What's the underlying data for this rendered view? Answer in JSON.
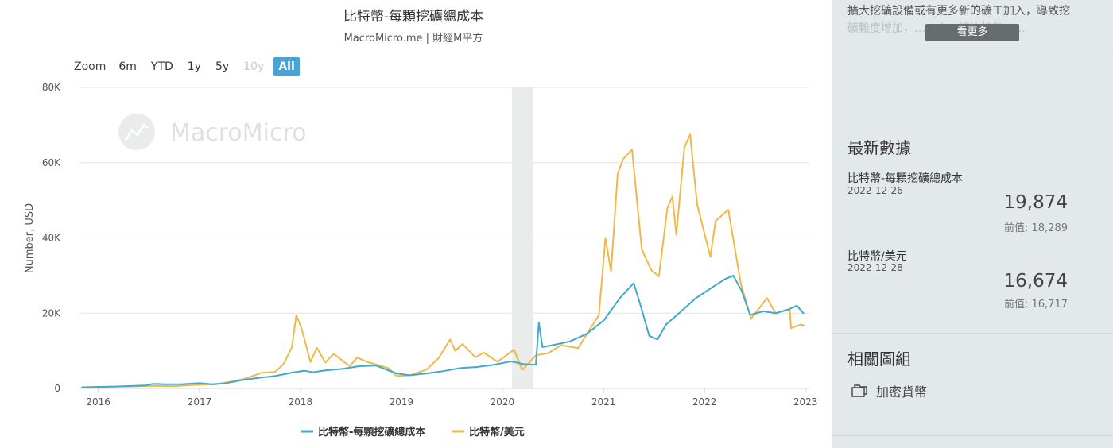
{
  "chart": {
    "title": "比特幣-每顆挖礦總成本",
    "subtitle": "MacroMicro.me | 財經M平方",
    "watermark": "MacroMicro",
    "zoom": {
      "label": "Zoom",
      "buttons": [
        {
          "label": "6m",
          "state": "normal"
        },
        {
          "label": "YTD",
          "state": "normal"
        },
        {
          "label": "1y",
          "state": "normal"
        },
        {
          "label": "5y",
          "state": "normal"
        },
        {
          "label": "10y",
          "state": "disabled"
        },
        {
          "label": "All",
          "state": "active"
        }
      ]
    }
  },
  "chart_data": {
    "type": "line",
    "ylabel": "Number, USD",
    "xlabel": "",
    "ylim": [
      0,
      80000
    ],
    "yticks": [
      0,
      20000,
      40000,
      60000,
      80000
    ],
    "ytick_labels": [
      "0",
      "20K",
      "40K",
      "60K",
      "80K"
    ],
    "xlim": [
      "2015-10-25",
      "2023-01-15"
    ],
    "xtick_labels": [
      "2016",
      "2017",
      "2018",
      "2019",
      "2020",
      "2021",
      "2022",
      "2023"
    ],
    "grid": true,
    "legend_position": "bottom",
    "shaded_band": {
      "start": "2020-02-05",
      "end": "2020-04-20"
    },
    "series": [
      {
        "name": "比特幣-每顆挖礦總成本",
        "color": "#3fa9cf",
        "points": [
          [
            "2015-11-01",
            250
          ],
          [
            "2016-01-01",
            400
          ],
          [
            "2016-03-01",
            500
          ],
          [
            "2016-05-01",
            650
          ],
          [
            "2016-06-20",
            800
          ],
          [
            "2016-07-15",
            1200
          ],
          [
            "2016-09-01",
            1100
          ],
          [
            "2016-11-01",
            1150
          ],
          [
            "2017-01-01",
            1400
          ],
          [
            "2017-02-15",
            1100
          ],
          [
            "2017-04-01",
            1300
          ],
          [
            "2017-06-01",
            2200
          ],
          [
            "2017-08-01",
            2800
          ],
          [
            "2017-10-01",
            3300
          ],
          [
            "2017-12-01",
            4200
          ],
          [
            "2018-01-15",
            4700
          ],
          [
            "2018-02-15",
            4300
          ],
          [
            "2018-04-01",
            4800
          ],
          [
            "2018-06-01",
            5200
          ],
          [
            "2018-08-01",
            5900
          ],
          [
            "2018-10-01",
            6100
          ],
          [
            "2018-11-15",
            4800
          ],
          [
            "2018-12-15",
            4000
          ],
          [
            "2019-02-01",
            3500
          ],
          [
            "2019-04-01",
            4000
          ],
          [
            "2019-06-01",
            4600
          ],
          [
            "2019-08-01",
            5400
          ],
          [
            "2019-10-01",
            5700
          ],
          [
            "2019-12-01",
            6300
          ],
          [
            "2020-02-01",
            7200
          ],
          [
            "2020-03-15",
            6500
          ],
          [
            "2020-05-01",
            6300
          ],
          [
            "2020-05-12",
            17500
          ],
          [
            "2020-05-25",
            11000
          ],
          [
            "2020-07-01",
            11500
          ],
          [
            "2020-09-01",
            12500
          ],
          [
            "2020-11-01",
            14500
          ],
          [
            "2021-01-01",
            18000
          ],
          [
            "2021-03-01",
            24000
          ],
          [
            "2021-04-20",
            28000
          ],
          [
            "2021-05-15",
            22000
          ],
          [
            "2021-06-15",
            14000
          ],
          [
            "2021-07-15",
            13000
          ],
          [
            "2021-08-15",
            17000
          ],
          [
            "2021-10-01",
            20000
          ],
          [
            "2021-12-01",
            24000
          ],
          [
            "2022-02-01",
            27000
          ],
          [
            "2022-03-15",
            29000
          ],
          [
            "2022-04-15",
            30000
          ],
          [
            "2022-05-15",
            26000
          ],
          [
            "2022-06-15",
            19500
          ],
          [
            "2022-08-01",
            20500
          ],
          [
            "2022-09-15",
            20000
          ],
          [
            "2022-11-01",
            21000
          ],
          [
            "2022-12-01",
            22000
          ],
          [
            "2022-12-26",
            19874
          ]
        ]
      },
      {
        "name": "比特幣/美元",
        "color": "#f0b849",
        "points": [
          [
            "2015-11-01",
            330
          ],
          [
            "2016-01-01",
            430
          ],
          [
            "2016-06-01",
            580
          ],
          [
            "2016-07-01",
            670
          ],
          [
            "2016-10-01",
            620
          ],
          [
            "2017-01-01",
            1000
          ],
          [
            "2017-03-01",
            1100
          ],
          [
            "2017-05-01",
            1900
          ],
          [
            "2017-06-15",
            2600
          ],
          [
            "2017-08-15",
            4200
          ],
          [
            "2017-10-01",
            4400
          ],
          [
            "2017-11-01",
            6500
          ],
          [
            "2017-12-01",
            11000
          ],
          [
            "2017-12-17",
            19500
          ],
          [
            "2018-01-05",
            16000
          ],
          [
            "2018-02-06",
            7000
          ],
          [
            "2018-03-01",
            10800
          ],
          [
            "2018-04-01",
            6900
          ],
          [
            "2018-05-01",
            9200
          ],
          [
            "2018-06-28",
            5900
          ],
          [
            "2018-07-25",
            8200
          ],
          [
            "2018-09-01",
            7000
          ],
          [
            "2018-11-15",
            5400
          ],
          [
            "2018-12-15",
            3300
          ],
          [
            "2019-02-01",
            3500
          ],
          [
            "2019-04-01",
            5000
          ],
          [
            "2019-05-15",
            8000
          ],
          [
            "2019-06-26",
            13000
          ],
          [
            "2019-07-15",
            10000
          ],
          [
            "2019-08-10",
            11800
          ],
          [
            "2019-09-25",
            8300
          ],
          [
            "2019-10-26",
            9500
          ],
          [
            "2019-12-15",
            7100
          ],
          [
            "2020-02-12",
            10300
          ],
          [
            "2020-03-13",
            4900
          ],
          [
            "2020-05-01",
            8800
          ],
          [
            "2020-06-15",
            9400
          ],
          [
            "2020-08-01",
            11500
          ],
          [
            "2020-10-01",
            10700
          ],
          [
            "2020-11-15",
            16000
          ],
          [
            "2020-12-15",
            19500
          ],
          [
            "2021-01-08",
            40000
          ],
          [
            "2021-01-28",
            31000
          ],
          [
            "2021-02-21",
            57000
          ],
          [
            "2021-03-13",
            61000
          ],
          [
            "2021-04-14",
            63500
          ],
          [
            "2021-05-19",
            37000
          ],
          [
            "2021-06-22",
            31500
          ],
          [
            "2021-07-20",
            29800
          ],
          [
            "2021-08-20",
            48000
          ],
          [
            "2021-09-07",
            51000
          ],
          [
            "2021-09-21",
            40800
          ],
          [
            "2021-10-20",
            64000
          ],
          [
            "2021-11-10",
            67500
          ],
          [
            "2021-12-05",
            49000
          ],
          [
            "2022-01-22",
            35000
          ],
          [
            "2022-02-10",
            44500
          ],
          [
            "2022-03-28",
            47500
          ],
          [
            "2022-05-12",
            28000
          ],
          [
            "2022-06-18",
            18500
          ],
          [
            "2022-08-15",
            24000
          ],
          [
            "2022-09-15",
            20000
          ],
          [
            "2022-11-05",
            21000
          ],
          [
            "2022-11-10",
            16000
          ],
          [
            "2022-12-15",
            17000
          ],
          [
            "2022-12-28",
            16674
          ]
        ]
      }
    ]
  },
  "sidebar": {
    "description_line1": "擴大挖礦設備或有更多新的礦工加入，導致挖",
    "description_line2": "礦難度增加，……之，挖比特幣……",
    "more_button": "看更多",
    "latest_title": "最新數據",
    "stats": [
      {
        "name": "比特幣-每顆挖礦總成本",
        "date": "2022-12-26",
        "value": "19,874",
        "prev": "前值: 18,289"
      },
      {
        "name": "比特幣/美元",
        "date": "2022-12-28",
        "value": "16,674",
        "prev": "前值: 16,717"
      }
    ],
    "related_title": "相關圖組",
    "related_items": [
      {
        "label": "加密貨幣",
        "icon": "folder-icon"
      }
    ]
  }
}
